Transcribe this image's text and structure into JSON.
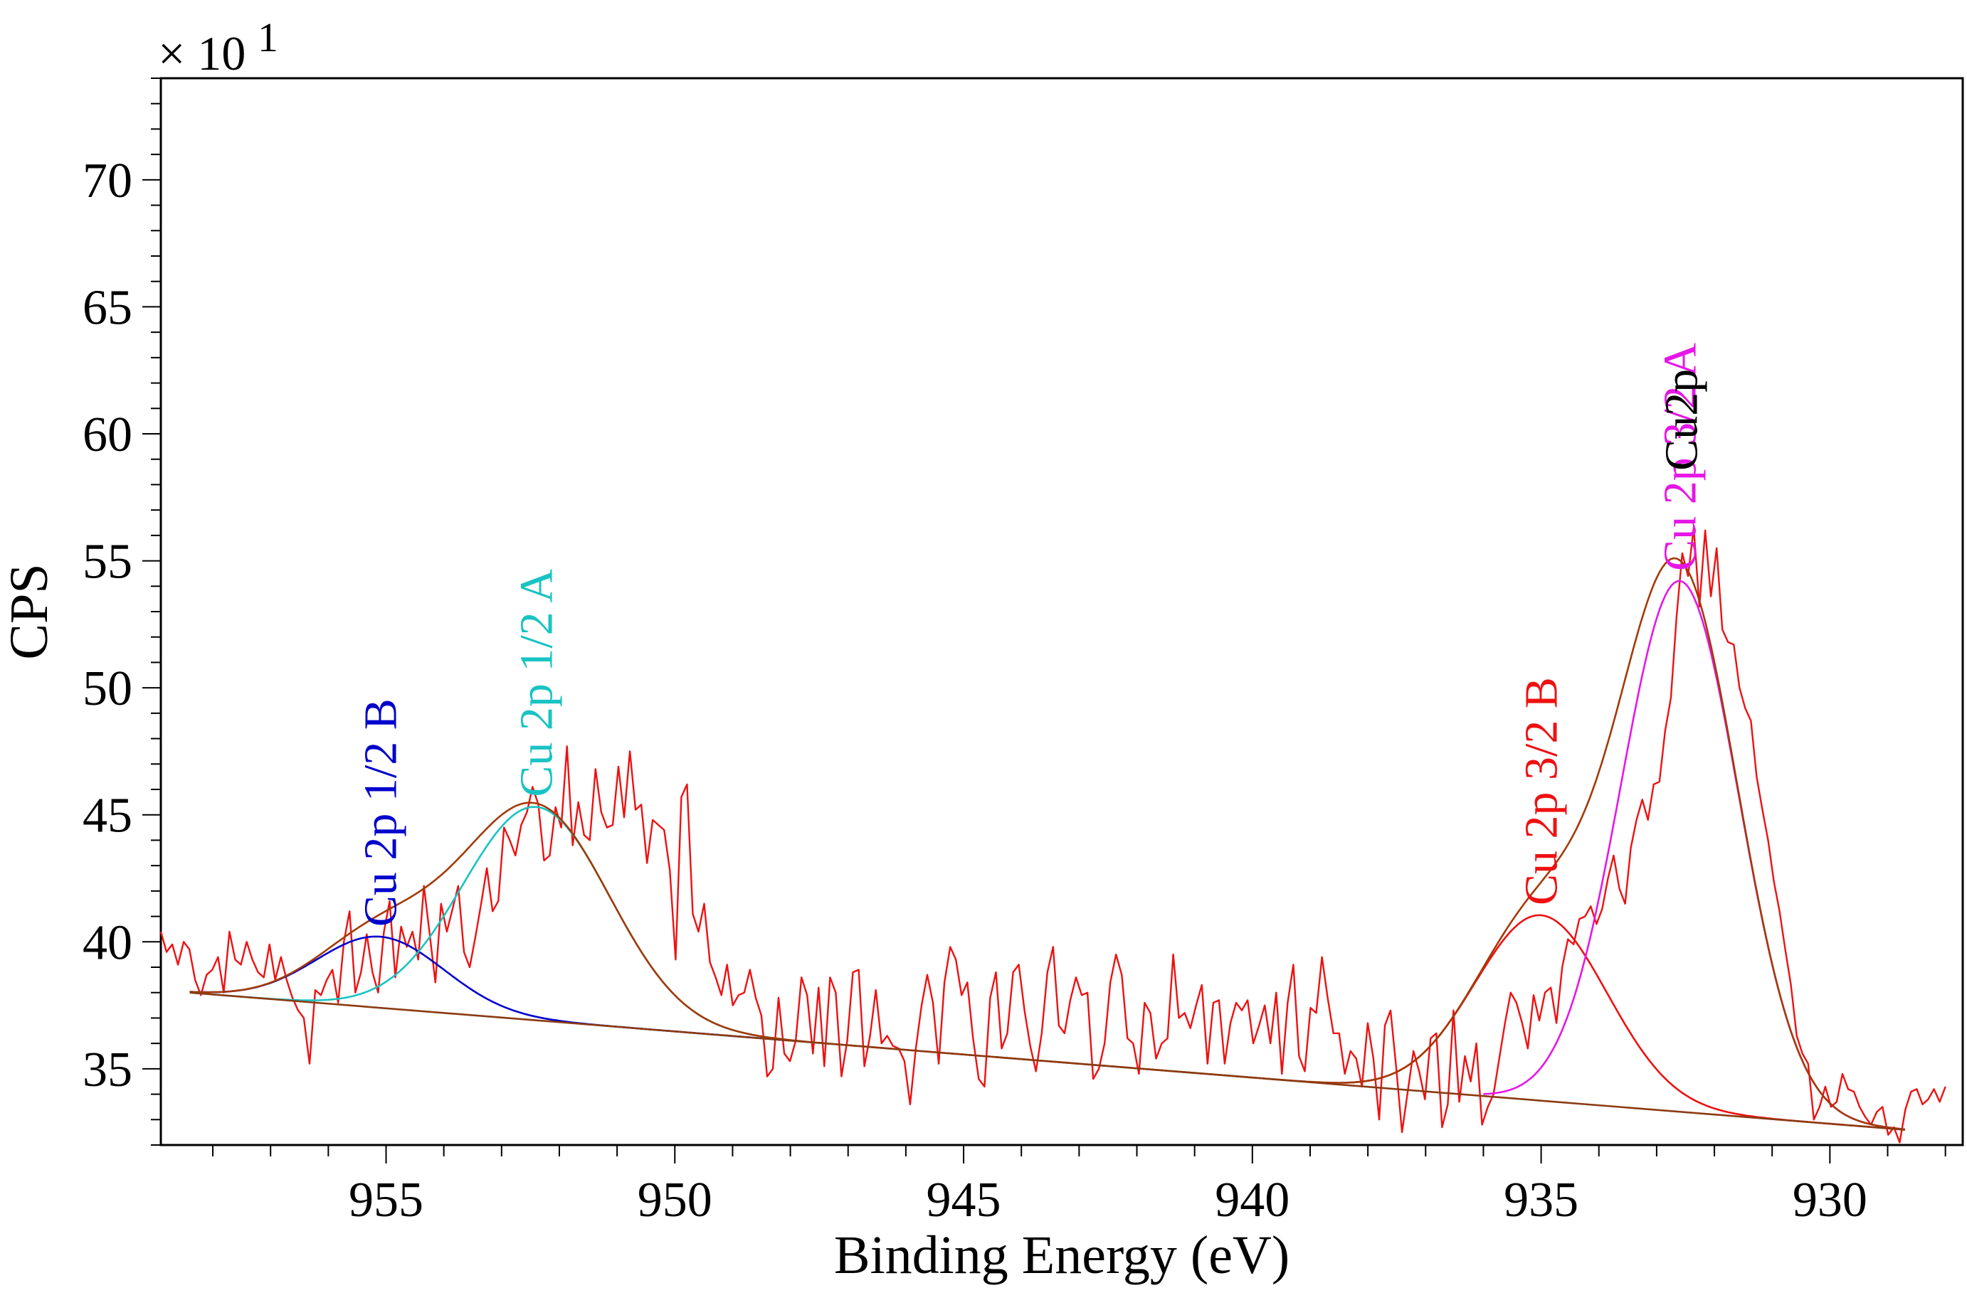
{
  "chart_data": {
    "type": "line",
    "title": "",
    "xlabel": "Binding Energy (eV)",
    "ylabel": "CPS",
    "scale_multiplier": "× 10",
    "scale_exponent": "1",
    "x_reversed": true,
    "xlim": [
      958.9,
      927.7
    ],
    "ylim": [
      32,
      74
    ],
    "x_ticks": [
      955,
      950,
      945,
      940,
      935,
      930
    ],
    "y_ticks": [
      35,
      40,
      45,
      50,
      55,
      60,
      65,
      70
    ],
    "background": {
      "start": [
        958.4,
        38.0
      ],
      "end": [
        928.7,
        32.6
      ]
    },
    "peaks": [
      {
        "name": "Cu 2p 1/2 B",
        "label": "Cu 2p 1/2 B",
        "center": 955.1,
        "height": 2.8,
        "fwhm": 2.6,
        "color": "#0000cc",
        "x_range": [
          958.4,
          948.0
        ],
        "label_x": 955.1
      },
      {
        "name": "Cu 2p 1/2 A",
        "label": "Cu 2p 1/2 A",
        "center": 952.4,
        "height": 8.4,
        "fwhm": 3.0,
        "color": "#19c3c3",
        "x_range": [
          958.4,
          948.0
        ],
        "label_x": 952.4
      },
      {
        "name": "Cu 2p 3/2 B",
        "label": "Cu 2p 3/2 B",
        "center": 935.0,
        "height": 7.3,
        "fwhm": 2.7,
        "color": "#ee1111",
        "x_range": [
          938.4,
          928.7
        ],
        "label_x": 935.0
      },
      {
        "name": "Cu 2p 3/2 A",
        "label": "Cu 2p 3/2 A",
        "center": 932.6,
        "height": 20.9,
        "fwhm": 2.4,
        "color": "#e617e6",
        "x_range": [
          936.0,
          928.7
        ],
        "label_x": 932.6
      }
    ],
    "overlay_label": {
      "text": "Cu2p",
      "x": 932.6,
      "color": "#000000"
    },
    "raw_color": "#ee1111",
    "envelope_color": "#a33a08",
    "background_color": "#8b3a12",
    "raw_series": {
      "name": "Cu2p raw data",
      "x_start": 958.9,
      "x_end": 928.0,
      "values": [
        40.4,
        39.6,
        39.9,
        39.1,
        40.0,
        39.7,
        38.5,
        37.9,
        38.7,
        38.9,
        39.4,
        38.0,
        40.4,
        39.3,
        39.1,
        40.0,
        39.3,
        38.8,
        38.6,
        39.9,
        38.5,
        39.4,
        38.5,
        37.8,
        37.3,
        37.0,
        35.2,
        38.1,
        37.9,
        38.5,
        38.9,
        37.6,
        40.0,
        41.2,
        38.0,
        38.8,
        40.3,
        38.8,
        38.0,
        40.4,
        41.6,
        38.6,
        40.6,
        39.8,
        40.4,
        39.3,
        42.2,
        40.3,
        38.4,
        41.5,
        40.4,
        41.3,
        42.2,
        39.6,
        39.0,
        40.2,
        41.5,
        42.9,
        41.2,
        41.6,
        44.5,
        44.0,
        43.4,
        44.6,
        45.1,
        46.1,
        45.4,
        43.2,
        43.4,
        45.3,
        44.5,
        47.7,
        43.8,
        45.5,
        44.2,
        44.0,
        46.8,
        45.1,
        44.5,
        44.6,
        46.9,
        44.9,
        47.5,
        45.2,
        45.4,
        43.1,
        44.8,
        44.6,
        44.4,
        42.8,
        39.3,
        45.7,
        46.2,
        41.1,
        40.4,
        41.5,
        39.2,
        38.6,
        37.9,
        39.1,
        37.5,
        37.9,
        38.0,
        38.9,
        37.8,
        37.1,
        34.7,
        35.0,
        37.8,
        35.6,
        35.3,
        36.1,
        38.6,
        37.9,
        35.6,
        38.2,
        35.1,
        38.6,
        38.0,
        34.7,
        36.1,
        38.8,
        38.9,
        35.1,
        36.3,
        38.1,
        36.0,
        36.3,
        35.9,
        35.8,
        35.3,
        33.6,
        35.8,
        37.5,
        38.7,
        37.6,
        35.2,
        38.4,
        39.8,
        39.3,
        37.9,
        38.4,
        36.2,
        34.6,
        34.3,
        37.8,
        38.8,
        35.8,
        36.4,
        38.8,
        39.1,
        37.3,
        35.9,
        34.9,
        36.4,
        38.8,
        39.8,
        36.7,
        36.4,
        37.7,
        38.6,
        37.9,
        38.0,
        34.6,
        35.0,
        36.0,
        38.4,
        39.5,
        38.7,
        36.2,
        36.0,
        34.8,
        37.6,
        37.2,
        35.4,
        36.0,
        36.2,
        39.5,
        37.0,
        37.2,
        36.6,
        37.5,
        38.3,
        35.2,
        37.6,
        37.7,
        35.2,
        36.8,
        37.6,
        37.3,
        37.7,
        36.0,
        36.7,
        37.5,
        36.0,
        38.0,
        34.8,
        37.6,
        39.1,
        35.5,
        34.9,
        37.4,
        37.2,
        39.4,
        37.8,
        36.4,
        36.4,
        34.8,
        35.7,
        35.4,
        34.3,
        36.8,
        35.4,
        33.0,
        36.7,
        37.3,
        35.0,
        32.5,
        34.1,
        35.7,
        34.9,
        33.8,
        36.2,
        36.4,
        32.7,
        33.6,
        37.3,
        33.7,
        35.5,
        34.5,
        36.0,
        32.8,
        33.5,
        34.0,
        35.4,
        36.8,
        38.0,
        37.6,
        36.8,
        35.8,
        37.9,
        36.9,
        38.0,
        38.2,
        36.8,
        39.0,
        40.1,
        39.9,
        40.9,
        41.0,
        41.4,
        40.7,
        41.3,
        42.5,
        43.4,
        42.1,
        41.5,
        43.7,
        44.8,
        45.6,
        44.8,
        46.2,
        46.3,
        48.3,
        49.6,
        52.8,
        55.3,
        54.4,
        56.3,
        53.2,
        56.2,
        53.6,
        55.5,
        52.3,
        51.8,
        51.7,
        50.0,
        49.2,
        48.7,
        46.5,
        45.2,
        44.0,
        42.4,
        41.2,
        39.7,
        38.3,
        36.3,
        35.6,
        35.2,
        33.0,
        33.5,
        34.3,
        33.5,
        33.7,
        34.8,
        34.2,
        34.1,
        33.5,
        33.1,
        32.8,
        33.3,
        33.5,
        32.4,
        32.7,
        32.1,
        33.4,
        34.1,
        34.2,
        33.6,
        33.8,
        34.2,
        33.7,
        34.3
      ]
    }
  }
}
